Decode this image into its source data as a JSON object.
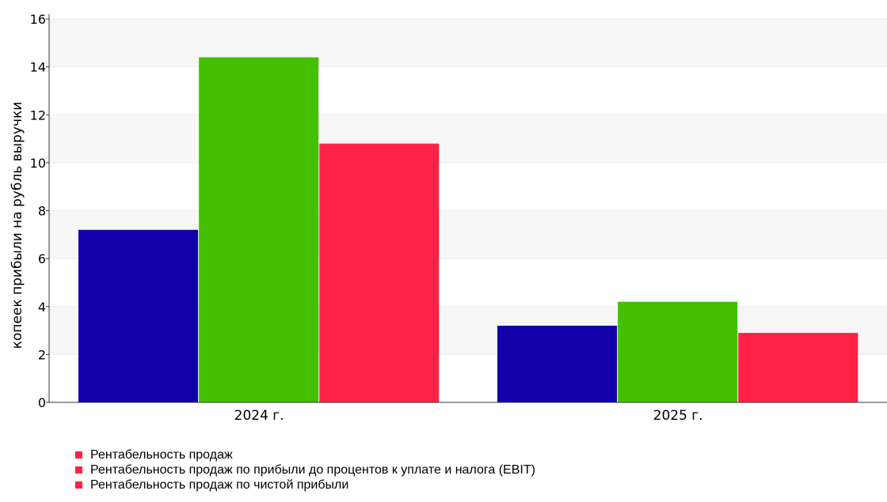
{
  "chart_data": {
    "type": "bar",
    "categories": [
      "2024 г.",
      "2025 г."
    ],
    "series": [
      {
        "name": "Рентабельность продаж",
        "values": [
          7.2,
          3.2
        ],
        "color": "#1100aa"
      },
      {
        "name": "Рентабельность продаж по прибыли до процентов к уплате и налога (EBIT)",
        "values": [
          14.4,
          4.2
        ],
        "color": "#44c000"
      },
      {
        "name": "Рентабельность продаж по чистой прибыли",
        "values": [
          10.8,
          2.9
        ],
        "color": "#ff2244"
      }
    ],
    "title": "",
    "xlabel": "",
    "ylabel": "копеек прибыли на рубль выручки",
    "ylim": [
      0,
      16
    ],
    "yticks": [
      0,
      2,
      4,
      6,
      8,
      10,
      12,
      14,
      16
    ],
    "grid": true,
    "legend_position": "bottom-left"
  }
}
